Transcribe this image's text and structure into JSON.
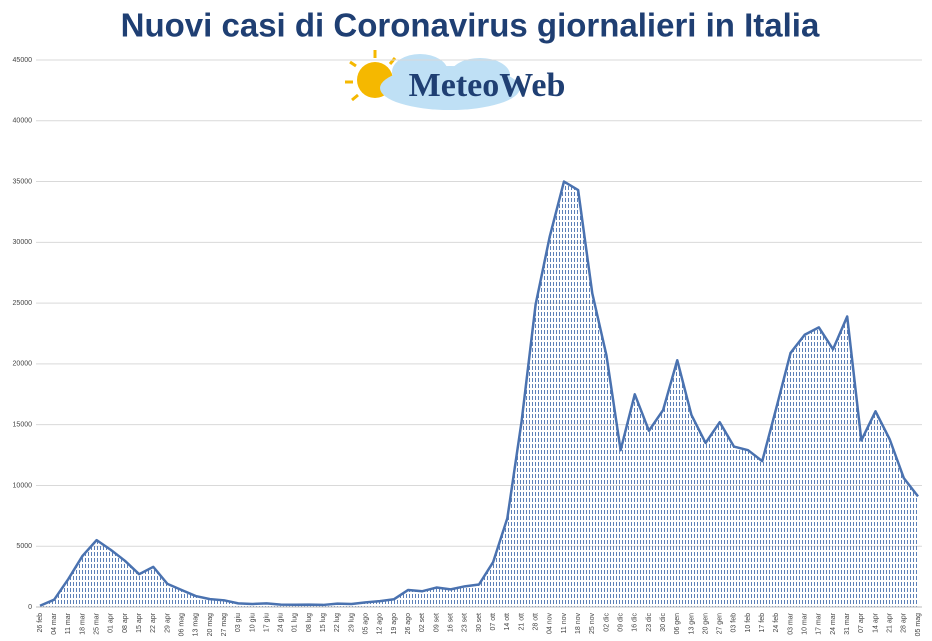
{
  "chart_data": {
    "type": "line",
    "title": "Nuovi casi di Coronavirus giornalieri in Italia",
    "logo_text": "MeteoWeb",
    "color": "#4a72b0",
    "grid": true,
    "ylim": [
      0,
      45000
    ],
    "yticks": [
      0,
      5000,
      10000,
      15000,
      20000,
      25000,
      30000,
      35000,
      40000,
      45000
    ],
    "categories": [
      "26 feb",
      "04 mar",
      "11 mar",
      "18 mar",
      "25 mar",
      "01 apr",
      "08 apr",
      "15 apr",
      "22 apr",
      "29 apr",
      "06 mag",
      "13 mag",
      "20 mag",
      "27 mag",
      "03 giu",
      "10 giu",
      "17 giu",
      "24 giu",
      "01 lug",
      "08 lug",
      "15 lug",
      "22 lug",
      "29 lug",
      "05 ago",
      "12 ago",
      "19 ago",
      "26 ago",
      "02 set",
      "09 set",
      "16 set",
      "23 set",
      "30 set",
      "07 ott",
      "14 ott",
      "21 ott",
      "28 ott",
      "04 nov",
      "11 nov",
      "18 nov",
      "25 nov",
      "02 dic",
      "09 dic",
      "16 dic",
      "23 dic",
      "30 dic",
      "06 gen",
      "13 gen",
      "20 gen",
      "27 gen",
      "03 feb",
      "10 feb",
      "17 feb",
      "24 feb",
      "03 mar",
      "10 mar",
      "17 mar",
      "24 mar",
      "31 mar",
      "07 apr",
      "14 apr",
      "21 apr",
      "28 apr",
      "05 mag"
    ],
    "values": [
      100,
      600,
      2300,
      4200,
      5500,
      4700,
      3800,
      2700,
      3300,
      1900,
      1400,
      900,
      650,
      550,
      300,
      250,
      300,
      200,
      180,
      200,
      170,
      280,
      250,
      380,
      480,
      640,
      1400,
      1300,
      1600,
      1450,
      1700,
      1850,
      3700,
      7300,
      15200,
      24900,
      30500,
      35000,
      34300,
      25800,
      20700,
      12900,
      17500,
      14500,
      16200,
      20300,
      15800,
      13500,
      15200,
      13200,
      12900,
      12000,
      16400,
      20900,
      22400,
      23000,
      21200,
      23900,
      13700,
      16100,
      13800,
      10600,
      9100
    ]
  }
}
